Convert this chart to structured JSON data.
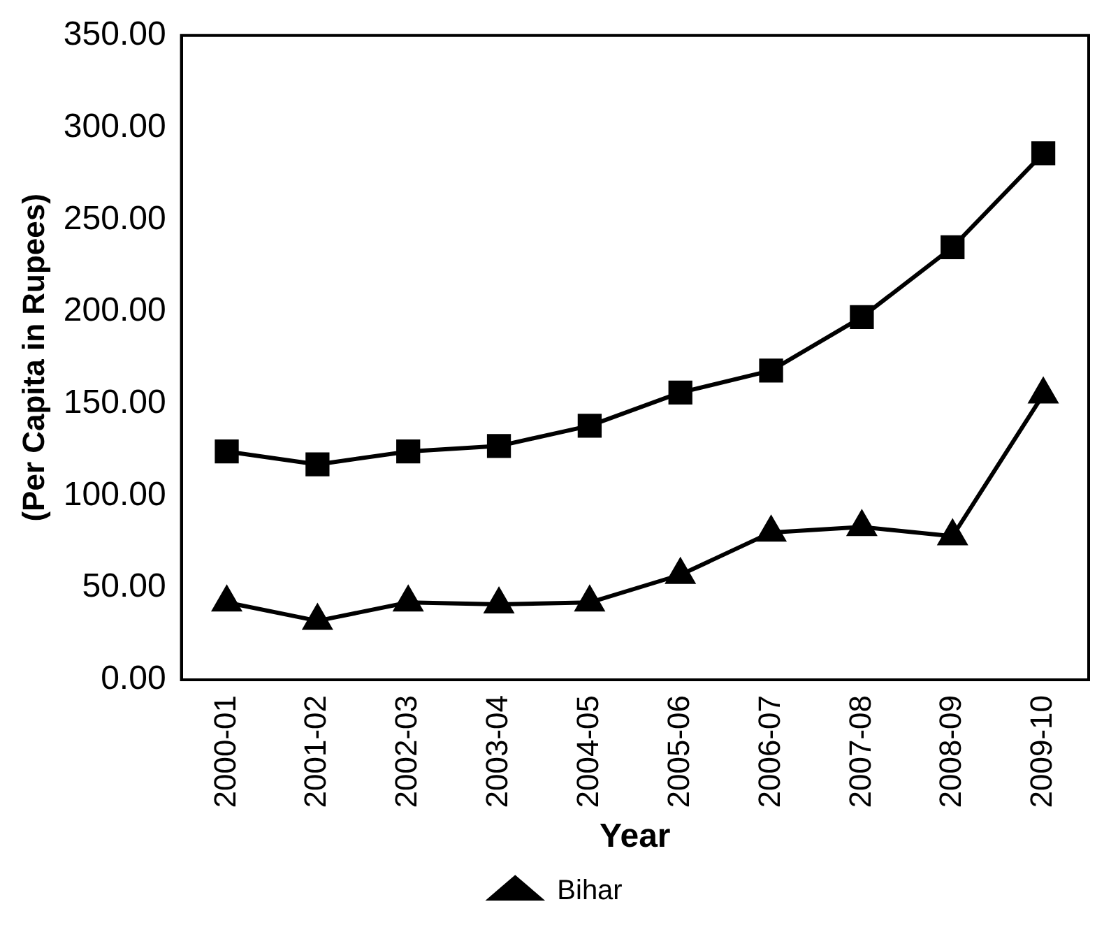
{
  "chart_data": {
    "type": "line",
    "xlabel": "Year",
    "ylabel": "(Per Capita in Rupees)",
    "categories": [
      "2000-01",
      "2001-02",
      "2002-03",
      "2003-04",
      "2004-05",
      "2005-06",
      "2006-07",
      "2007-08",
      "2008-09",
      "2009-10"
    ],
    "series": [
      {
        "color": "#000000",
        "marker": "square",
        "values": [
          124,
          117,
          124,
          127,
          138,
          156,
          168,
          197,
          235,
          286
        ]
      },
      {
        "name": "Bihar",
        "color": "#000000",
        "marker": "triangle",
        "values": [
          42,
          32,
          42,
          41,
          42,
          57,
          80,
          83,
          78,
          155
        ]
      }
    ],
    "ylim": [
      0,
      350
    ],
    "yticks": [
      {
        "value": 0,
        "label": "0.00"
      },
      {
        "value": 50,
        "label": "50.00"
      },
      {
        "value": 100,
        "label": "100.00"
      },
      {
        "value": 150,
        "label": "150.00"
      },
      {
        "value": 200,
        "label": "200.00"
      },
      {
        "value": 250,
        "label": "250.00"
      },
      {
        "value": 300,
        "label": "300.00"
      },
      {
        "value": 350,
        "label": "350.00"
      }
    ],
    "grid": false,
    "legend": "bottom",
    "line_style": "solid"
  }
}
